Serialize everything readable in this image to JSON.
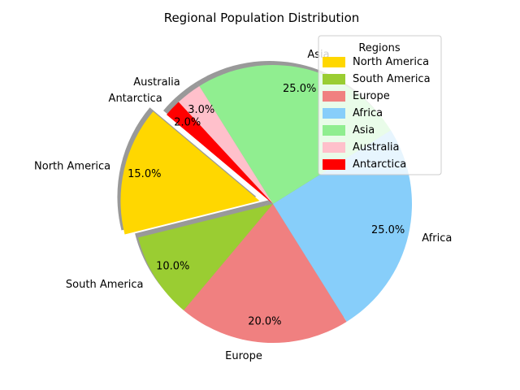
{
  "chart_data": {
    "type": "pie",
    "title": "Regional Population Distribution",
    "categories": [
      "North America",
      "South America",
      "Europe",
      "Africa",
      "Asia",
      "Australia",
      "Antarctica"
    ],
    "values": [
      15,
      10,
      20,
      25,
      25,
      3,
      2
    ],
    "value_labels": [
      "15.0%",
      "10.0%",
      "20.0%",
      "25.0%",
      "25.0%",
      "3.0%",
      "2.0%"
    ],
    "colors": [
      "#FFD700",
      "#9ACD32",
      "#F08080",
      "#87CEFA",
      "#90EE90",
      "#FFC0CB",
      "#FF0000"
    ],
    "exploded": [
      true,
      false,
      false,
      false,
      false,
      false,
      false
    ],
    "start_angle_deg": 140,
    "shadow": true,
    "legend": {
      "title": "Regions",
      "placement": "top-right"
    }
  }
}
